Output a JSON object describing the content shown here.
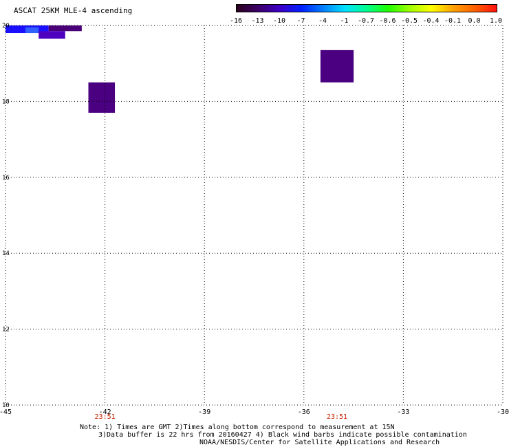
{
  "map": {
    "title": "ASCAT 25KM MLE-4 ascending",
    "lon_range": [
      -45,
      -30
    ],
    "lat_range": [
      10,
      20
    ],
    "grid": "dotted",
    "x_ticks": [
      {
        "value": -45,
        "label": "-45"
      },
      {
        "value": -42,
        "label": "-42"
      },
      {
        "value": -39,
        "label": "-39"
      },
      {
        "value": -36,
        "label": "-36"
      },
      {
        "value": -33,
        "label": "-33"
      },
      {
        "value": -30,
        "label": "-30"
      }
    ],
    "y_ticks": [
      {
        "value": 20,
        "label": "20"
      },
      {
        "value": 18,
        "label": "18"
      },
      {
        "value": 16,
        "label": "16"
      },
      {
        "value": 14,
        "label": "14"
      },
      {
        "value": 12,
        "label": "12"
      },
      {
        "value": 10,
        "label": "10"
      }
    ],
    "times": [
      {
        "lon": -42,
        "label": "23:51"
      },
      {
        "lon": -35,
        "label": "23:51"
      }
    ],
    "colorbar": {
      "labels": [
        "-16",
        "-13",
        "-10",
        "-7",
        "-4",
        "-1",
        "-0.7",
        "-0.6",
        "-0.5",
        "-0.4",
        "-0.1",
        "0.0",
        "1.0"
      ],
      "colors": [
        "#2a001e",
        "#3c0068",
        "#3d00c8",
        "#0020ff",
        "#0080ff",
        "#00e0ff",
        "#00ff90",
        "#20ff00",
        "#a0ff00",
        "#ffff00",
        "#ffa000",
        "#ff6000",
        "#ff1010"
      ]
    },
    "cells": [
      {
        "lon_min": -45.0,
        "lon_max": -43.7,
        "lat_min": 19.8,
        "lat_max": 20.0,
        "color": "#1a10ff"
      },
      {
        "lon_min": -44.4,
        "lon_max": -44.0,
        "lat_min": 19.8,
        "lat_max": 19.95,
        "color": "#3060ff"
      },
      {
        "lon_min": -43.7,
        "lon_max": -42.7,
        "lat_min": 19.85,
        "lat_max": 20.0,
        "color": "#4a0078"
      },
      {
        "lon_min": -44.0,
        "lon_max": -43.2,
        "lat_min": 19.65,
        "lat_max": 19.85,
        "color": "#4e00c0"
      },
      {
        "lon_min": -42.5,
        "lon_max": -41.7,
        "lat_min": 17.7,
        "lat_max": 18.5,
        "color": "#4a0080"
      },
      {
        "lon_min": -35.5,
        "lon_max": -34.5,
        "lat_min": 18.5,
        "lat_max": 19.35,
        "color": "#4a0080"
      }
    ]
  },
  "notes": {
    "line1": "Note: 1) Times are GMT 2)Times along bottom correspond to measurement at 15N",
    "line2": "3)Data buffer is 22 hrs from 20160427 4) Black wind barbs indicate possible contamination",
    "line3": "NOAA/NESDIS/Center for Satellite Applications and Research"
  }
}
